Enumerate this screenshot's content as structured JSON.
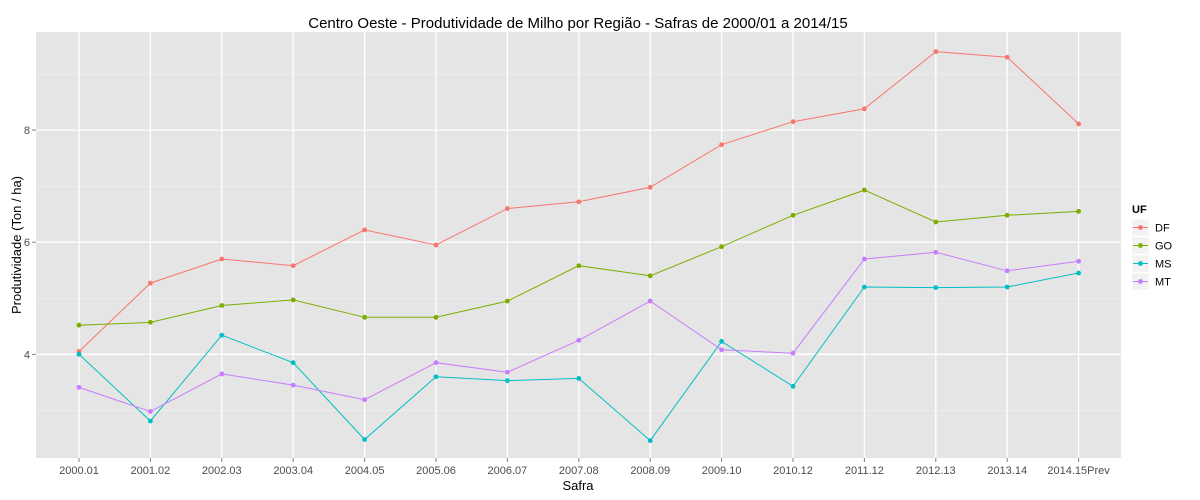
{
  "chart_data": {
    "type": "line",
    "title": "Centro Oeste  - Produtividade de Milho por Região - Safras de 2000/01 a 2014/15",
    "xlabel": "Safra",
    "ylabel": "Produtividade (Ton / ha)",
    "categories": [
      "2000.01",
      "2001.02",
      "2002.03",
      "2003.04",
      "2004.05",
      "2005.06",
      "2006.07",
      "2007.08",
      "2008.09",
      "2009.10",
      "2010.12",
      "2011.12",
      "2012.13",
      "2013.14",
      "2014.15Prev"
    ],
    "ylim": [
      2.15,
      9.75
    ],
    "yticks": [
      4,
      6,
      8
    ],
    "grid": true,
    "legend": {
      "title": "UF",
      "position": "right"
    },
    "series": [
      {
        "name": "DF",
        "color": "#F8766D",
        "values": [
          4.05,
          5.27,
          5.7,
          5.58,
          6.22,
          5.95,
          6.6,
          6.72,
          6.98,
          7.74,
          8.15,
          8.38,
          9.4,
          9.3,
          8.11
        ]
      },
      {
        "name": "GO",
        "color": "#7CAE00",
        "values": [
          4.52,
          4.57,
          4.87,
          4.97,
          4.66,
          4.66,
          4.95,
          5.58,
          5.4,
          5.92,
          6.48,
          6.93,
          6.36,
          6.48,
          6.55
        ]
      },
      {
        "name": "MS",
        "color": "#00BFC4",
        "values": [
          4.0,
          2.81,
          4.34,
          3.85,
          2.48,
          3.6,
          3.53,
          3.57,
          2.46,
          4.23,
          3.43,
          5.2,
          5.19,
          5.2,
          5.45
        ]
      },
      {
        "name": "MT",
        "color": "#C77CFF",
        "values": [
          3.41,
          2.98,
          3.65,
          3.45,
          3.19,
          3.85,
          3.68,
          4.25,
          4.95,
          4.08,
          4.02,
          5.7,
          5.82,
          5.49,
          5.66
        ]
      }
    ]
  }
}
